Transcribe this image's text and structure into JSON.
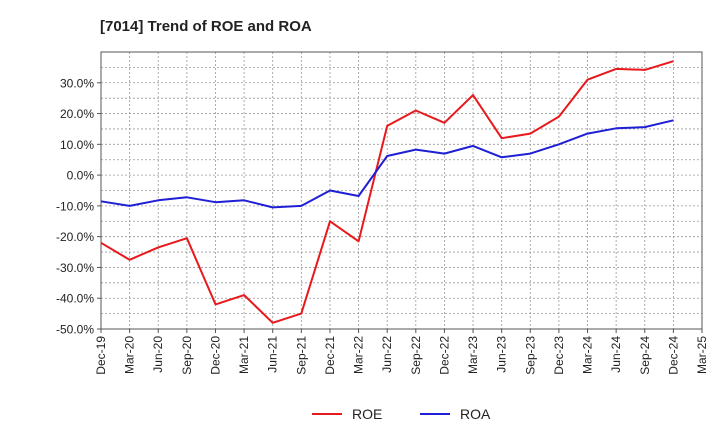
{
  "chart_data": {
    "type": "line",
    "title": "[7014]  Trend of ROE and ROA",
    "xlabel": "",
    "ylabel": "",
    "x": [
      "Dec-19",
      "Mar-20",
      "Jun-20",
      "Sep-20",
      "Dec-20",
      "Mar-21",
      "Jun-21",
      "Sep-21",
      "Dec-21",
      "Mar-22",
      "Jun-22",
      "Sep-22",
      "Dec-22",
      "Mar-23",
      "Jun-23",
      "Sep-23",
      "Dec-23",
      "Mar-24",
      "Jun-24",
      "Sep-24",
      "Dec-24",
      "Mar-25"
    ],
    "y_ticks": [
      "30.0%",
      "20.0%",
      "10.0%",
      "0.0%",
      "-10.0%",
      "-20.0%",
      "-30.0%",
      "-40.0%",
      "-50.0%"
    ],
    "ylim": [
      -50,
      40
    ],
    "grid": true,
    "legend_position": "bottom-center",
    "series": [
      {
        "name": "ROE",
        "color": "#e8191c",
        "values": [
          -22.0,
          -27.5,
          -23.5,
          -20.5,
          -42.0,
          -39.0,
          -48.0,
          -45.0,
          -15.0,
          -21.5,
          16.0,
          21.0,
          17.0,
          26.0,
          12.0,
          13.5,
          19.0,
          31.0,
          34.5,
          34.2,
          37.0,
          null
        ]
      },
      {
        "name": "ROA",
        "color": "#1f1fd6",
        "values": [
          -8.5,
          -10.0,
          -8.2,
          -7.2,
          -8.8,
          -8.2,
          -10.5,
          -10.0,
          -5.0,
          -6.8,
          6.2,
          8.3,
          7.0,
          9.5,
          5.8,
          7.0,
          10.0,
          13.5,
          15.2,
          15.6,
          17.8,
          null
        ]
      }
    ]
  }
}
